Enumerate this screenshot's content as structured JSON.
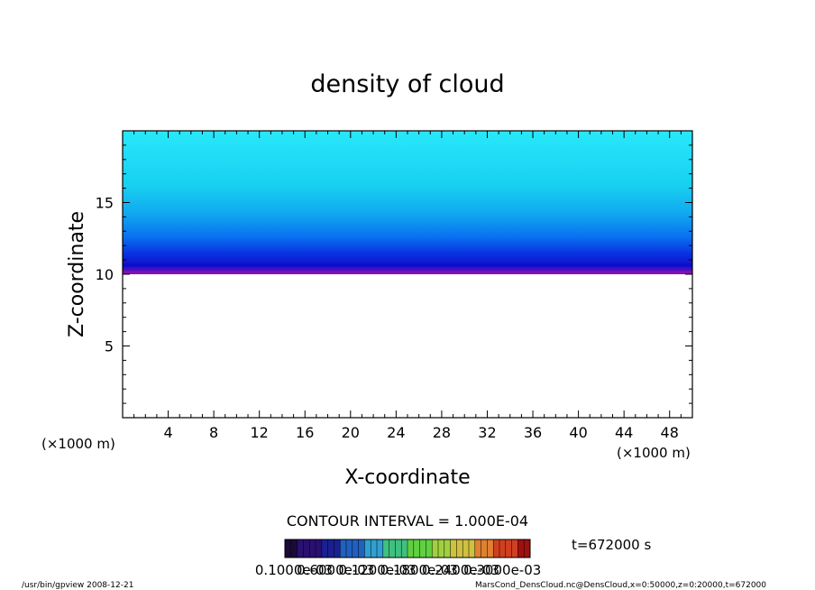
{
  "chart_data": {
    "type": "contour",
    "title": "density of cloud",
    "xlabel": "X-coordinate",
    "ylabel": "Z-coordinate",
    "x_unit_left": "(×1000 m)",
    "x_unit_right": "(×1000 m)",
    "xlim": [
      0,
      50
    ],
    "ylim": [
      0,
      20
    ],
    "x_ticks": [
      "4",
      "8",
      "12",
      "16",
      "20",
      "24",
      "28",
      "32",
      "36",
      "40",
      "44",
      "48"
    ],
    "x_tick_values": [
      4,
      8,
      12,
      16,
      20,
      24,
      28,
      32,
      36,
      40,
      44,
      48
    ],
    "y_ticks": [
      "5",
      "10",
      "15"
    ],
    "y_tick_values": [
      5,
      10,
      15
    ],
    "cloud_base_z": 10,
    "cloud_top_z": 20,
    "contour_interval": "CONTOUR INTERVAL = 1.000E-04",
    "time_label": "t=672000 s",
    "colorbar_labels": [
      "0.1000e-03",
      "0.6000e-03",
      "0.1200e-03",
      "0.1800e-03",
      "0.2400e-03",
      "0.3000e-03"
    ],
    "colorbar_colors": [
      "#1a0a3a",
      "#2a1070",
      "#1a2090",
      "#2060c0",
      "#30a0d0",
      "#40c080",
      "#60d040",
      "#a0d040",
      "#d0c040",
      "#e08030",
      "#d04020",
      "#a01010"
    ],
    "band_colors": [
      "#8a10b0",
      "#3a10c0",
      "#0a0ad0",
      "#0a30e0",
      "#0a60f0",
      "#0a90f0",
      "#10b8f0",
      "#18d0f0",
      "#20e0f8",
      "#28ecfc"
    ]
  },
  "footer": {
    "left": "/usr/bin/gpview   2008-12-21",
    "right": "MarsCond_DensCloud.nc@DensCloud,x=0:50000,z=0:20000,t=672000"
  }
}
